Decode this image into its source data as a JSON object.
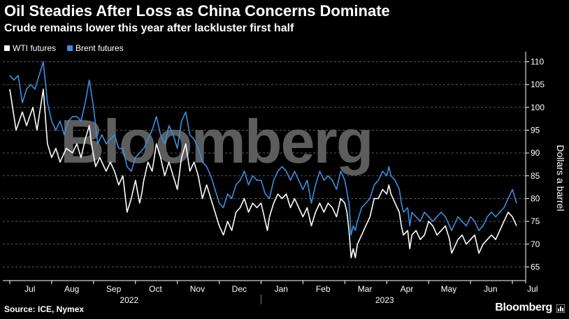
{
  "title": "Oil Steadies After Loss as China Concerns Dominate",
  "subtitle": "Crude remains lower this year after lackluster first half",
  "source": "Source: ICE, Nymex",
  "brand": "Bloomberg",
  "watermark": "Bloomberg",
  "colors": {
    "background": "#000000",
    "wti": "#ffffff",
    "brent": "#3c8fe0",
    "grid": "#5a5a5a"
  },
  "chart_data": {
    "type": "line",
    "title": "Oil Steadies After Loss as China Concerns Dominate",
    "subtitle": "Crude remains lower this year after lackluster first half",
    "xlabel": "",
    "ylabel": "Dollars a barrel",
    "ylim": [
      62,
      111
    ],
    "yticks": [
      65,
      70,
      75,
      80,
      85,
      90,
      95,
      100,
      105,
      110
    ],
    "y_axis_side": "right",
    "grid": "horizontal dashed",
    "legend_position": "top-left",
    "month_ticks": [
      "Jul",
      "Aug",
      "Sep",
      "Oct",
      "Nov",
      "Dec",
      "Jan",
      "Feb",
      "Mar",
      "Apr",
      "May",
      "Jun",
      "Jul"
    ],
    "year_labels": [
      {
        "label": "2022",
        "center_month_index": 2.85
      },
      {
        "label": "2023",
        "center_month_index": 8.95
      }
    ],
    "x_unit": "months since start of July 2022",
    "series": [
      {
        "name": "WTI futures",
        "color": "#ffffff",
        "points": [
          [
            0.0,
            104
          ],
          [
            0.05,
            101
          ],
          [
            0.15,
            95
          ],
          [
            0.3,
            99
          ],
          [
            0.4,
            96
          ],
          [
            0.55,
            100
          ],
          [
            0.65,
            95
          ],
          [
            0.8,
            104
          ],
          [
            0.9,
            92
          ],
          [
            1.0,
            89
          ],
          [
            1.1,
            91
          ],
          [
            1.2,
            88
          ],
          [
            1.35,
            91
          ],
          [
            1.5,
            90
          ],
          [
            1.6,
            92
          ],
          [
            1.7,
            89
          ],
          [
            1.8,
            93
          ],
          [
            1.9,
            96
          ],
          [
            1.95,
            92
          ],
          [
            2.05,
            87
          ],
          [
            2.15,
            89
          ],
          [
            2.3,
            86
          ],
          [
            2.4,
            88
          ],
          [
            2.5,
            86
          ],
          [
            2.6,
            83
          ],
          [
            2.7,
            85
          ],
          [
            2.75,
            81
          ],
          [
            2.8,
            77
          ],
          [
            2.9,
            80
          ],
          [
            3.0,
            84
          ],
          [
            3.1,
            79
          ],
          [
            3.15,
            81
          ],
          [
            3.2,
            84
          ],
          [
            3.3,
            88
          ],
          [
            3.4,
            86
          ],
          [
            3.5,
            92
          ],
          [
            3.6,
            89
          ],
          [
            3.7,
            85
          ],
          [
            3.8,
            88
          ],
          [
            3.9,
            85
          ],
          [
            4.0,
            82
          ],
          [
            4.1,
            89
          ],
          [
            4.2,
            92
          ],
          [
            4.3,
            86
          ],
          [
            4.4,
            88
          ],
          [
            4.5,
            85
          ],
          [
            4.6,
            80
          ],
          [
            4.7,
            83
          ],
          [
            4.8,
            80
          ],
          [
            4.9,
            77
          ],
          [
            5.0,
            74
          ],
          [
            5.1,
            72
          ],
          [
            5.2,
            75
          ],
          [
            5.3,
            73
          ],
          [
            5.4,
            77
          ],
          [
            5.5,
            78
          ],
          [
            5.6,
            80
          ],
          [
            5.7,
            77
          ],
          [
            5.8,
            79
          ],
          [
            5.9,
            78
          ],
          [
            6.0,
            79
          ],
          [
            6.1,
            75
          ],
          [
            6.15,
            73
          ],
          [
            6.2,
            76
          ],
          [
            6.3,
            79
          ],
          [
            6.4,
            81
          ],
          [
            6.5,
            80
          ],
          [
            6.6,
            81
          ],
          [
            6.7,
            78
          ],
          [
            6.8,
            80
          ],
          [
            6.9,
            78
          ],
          [
            7.0,
            76
          ],
          [
            7.1,
            78
          ],
          [
            7.2,
            74
          ],
          [
            7.3,
            77
          ],
          [
            7.4,
            79
          ],
          [
            7.5,
            77
          ],
          [
            7.6,
            79
          ],
          [
            7.7,
            78
          ],
          [
            7.8,
            76
          ],
          [
            7.9,
            80
          ],
          [
            8.0,
            79
          ],
          [
            8.05,
            77
          ],
          [
            8.1,
            73
          ],
          [
            8.15,
            67
          ],
          [
            8.2,
            69
          ],
          [
            8.25,
            67
          ],
          [
            8.3,
            70
          ],
          [
            8.4,
            72
          ],
          [
            8.5,
            74
          ],
          [
            8.6,
            76
          ],
          [
            8.7,
            80
          ],
          [
            8.8,
            80
          ],
          [
            8.9,
            82
          ],
          [
            9.0,
            81
          ],
          [
            9.05,
            83
          ],
          [
            9.1,
            81
          ],
          [
            9.2,
            79
          ],
          [
            9.3,
            77
          ],
          [
            9.35,
            74
          ],
          [
            9.4,
            72
          ],
          [
            9.5,
            73
          ],
          [
            9.55,
            69
          ],
          [
            9.6,
            72
          ],
          [
            9.7,
            73
          ],
          [
            9.8,
            71
          ],
          [
            9.9,
            72
          ],
          [
            10.0,
            75
          ],
          [
            10.1,
            74
          ],
          [
            10.2,
            72
          ],
          [
            10.3,
            73
          ],
          [
            10.4,
            74
          ],
          [
            10.5,
            71
          ],
          [
            10.55,
            68
          ],
          [
            10.6,
            69
          ],
          [
            10.7,
            71
          ],
          [
            10.8,
            72
          ],
          [
            10.9,
            70
          ],
          [
            11.0,
            71
          ],
          [
            11.1,
            72
          ],
          [
            11.2,
            68
          ],
          [
            11.3,
            70
          ],
          [
            11.4,
            71
          ],
          [
            11.5,
            72
          ],
          [
            11.6,
            71
          ],
          [
            11.7,
            73
          ],
          [
            11.8,
            75
          ],
          [
            11.9,
            77
          ],
          [
            12.0,
            76
          ],
          [
            12.1,
            74
          ]
        ]
      },
      {
        "name": "Brent futures",
        "color": "#3c8fe0",
        "points": [
          [
            0.0,
            107
          ],
          [
            0.1,
            106
          ],
          [
            0.2,
            107
          ],
          [
            0.3,
            101
          ],
          [
            0.4,
            104
          ],
          [
            0.5,
            105
          ],
          [
            0.6,
            104
          ],
          [
            0.7,
            107
          ],
          [
            0.8,
            110
          ],
          [
            0.9,
            101
          ],
          [
            1.0,
            97
          ],
          [
            1.1,
            95
          ],
          [
            1.2,
            97
          ],
          [
            1.3,
            94
          ],
          [
            1.4,
            97
          ],
          [
            1.5,
            98
          ],
          [
            1.6,
            98
          ],
          [
            1.7,
            97
          ],
          [
            1.8,
            101
          ],
          [
            1.9,
            106
          ],
          [
            2.0,
            100
          ],
          [
            2.05,
            96
          ],
          [
            2.1,
            92
          ],
          [
            2.2,
            94
          ],
          [
            2.3,
            92
          ],
          [
            2.4,
            93
          ],
          [
            2.5,
            94
          ],
          [
            2.6,
            91
          ],
          [
            2.7,
            91
          ],
          [
            2.8,
            87
          ],
          [
            2.9,
            86
          ],
          [
            3.0,
            89
          ],
          [
            3.1,
            90
          ],
          [
            3.2,
            91
          ],
          [
            3.3,
            93
          ],
          [
            3.4,
            95
          ],
          [
            3.5,
            98
          ],
          [
            3.6,
            94
          ],
          [
            3.7,
            92
          ],
          [
            3.8,
            96
          ],
          [
            3.9,
            94
          ],
          [
            4.0,
            91
          ],
          [
            4.1,
            97
          ],
          [
            4.2,
            99
          ],
          [
            4.3,
            94
          ],
          [
            4.4,
            93
          ],
          [
            4.5,
            91
          ],
          [
            4.6,
            88
          ],
          [
            4.7,
            87
          ],
          [
            4.8,
            85
          ],
          [
            4.9,
            82
          ],
          [
            5.0,
            79
          ],
          [
            5.1,
            78
          ],
          [
            5.2,
            81
          ],
          [
            5.3,
            80
          ],
          [
            5.4,
            83
          ],
          [
            5.5,
            84
          ],
          [
            5.6,
            86
          ],
          [
            5.7,
            83
          ],
          [
            5.8,
            85
          ],
          [
            5.9,
            84
          ],
          [
            6.0,
            84
          ],
          [
            6.1,
            81
          ],
          [
            6.2,
            80
          ],
          [
            6.3,
            84
          ],
          [
            6.4,
            86
          ],
          [
            6.5,
            87
          ],
          [
            6.6,
            86
          ],
          [
            6.7,
            84
          ],
          [
            6.8,
            86
          ],
          [
            6.9,
            84
          ],
          [
            7.0,
            82
          ],
          [
            7.1,
            84
          ],
          [
            7.2,
            79
          ],
          [
            7.3,
            83
          ],
          [
            7.4,
            86
          ],
          [
            7.5,
            84
          ],
          [
            7.6,
            85
          ],
          [
            7.7,
            84
          ],
          [
            7.8,
            82
          ],
          [
            7.9,
            86
          ],
          [
            8.0,
            84
          ],
          [
            8.1,
            79
          ],
          [
            8.15,
            72
          ],
          [
            8.2,
            74
          ],
          [
            8.25,
            73
          ],
          [
            8.3,
            75
          ],
          [
            8.4,
            78
          ],
          [
            8.5,
            79
          ],
          [
            8.6,
            80
          ],
          [
            8.7,
            83
          ],
          [
            8.8,
            84
          ],
          [
            8.9,
            86
          ],
          [
            9.0,
            85
          ],
          [
            9.05,
            87
          ],
          [
            9.1,
            85
          ],
          [
            9.2,
            84
          ],
          [
            9.3,
            82
          ],
          [
            9.35,
            79
          ],
          [
            9.4,
            77
          ],
          [
            9.5,
            78
          ],
          [
            9.55,
            74
          ],
          [
            9.6,
            77
          ],
          [
            9.7,
            76
          ],
          [
            9.8,
            75
          ],
          [
            9.9,
            77
          ],
          [
            10.0,
            76
          ],
          [
            10.1,
            75
          ],
          [
            10.2,
            76
          ],
          [
            10.3,
            77
          ],
          [
            10.4,
            76
          ],
          [
            10.5,
            74
          ],
          [
            10.55,
            73
          ],
          [
            10.6,
            74
          ],
          [
            10.7,
            76
          ],
          [
            10.8,
            75
          ],
          [
            10.9,
            74
          ],
          [
            11.0,
            76
          ],
          [
            11.1,
            75
          ],
          [
            11.2,
            73
          ],
          [
            11.3,
            74
          ],
          [
            11.4,
            76
          ],
          [
            11.5,
            77
          ],
          [
            11.6,
            76
          ],
          [
            11.7,
            77
          ],
          [
            11.8,
            78
          ],
          [
            11.9,
            80
          ],
          [
            12.0,
            82
          ],
          [
            12.1,
            79
          ]
        ]
      }
    ]
  }
}
